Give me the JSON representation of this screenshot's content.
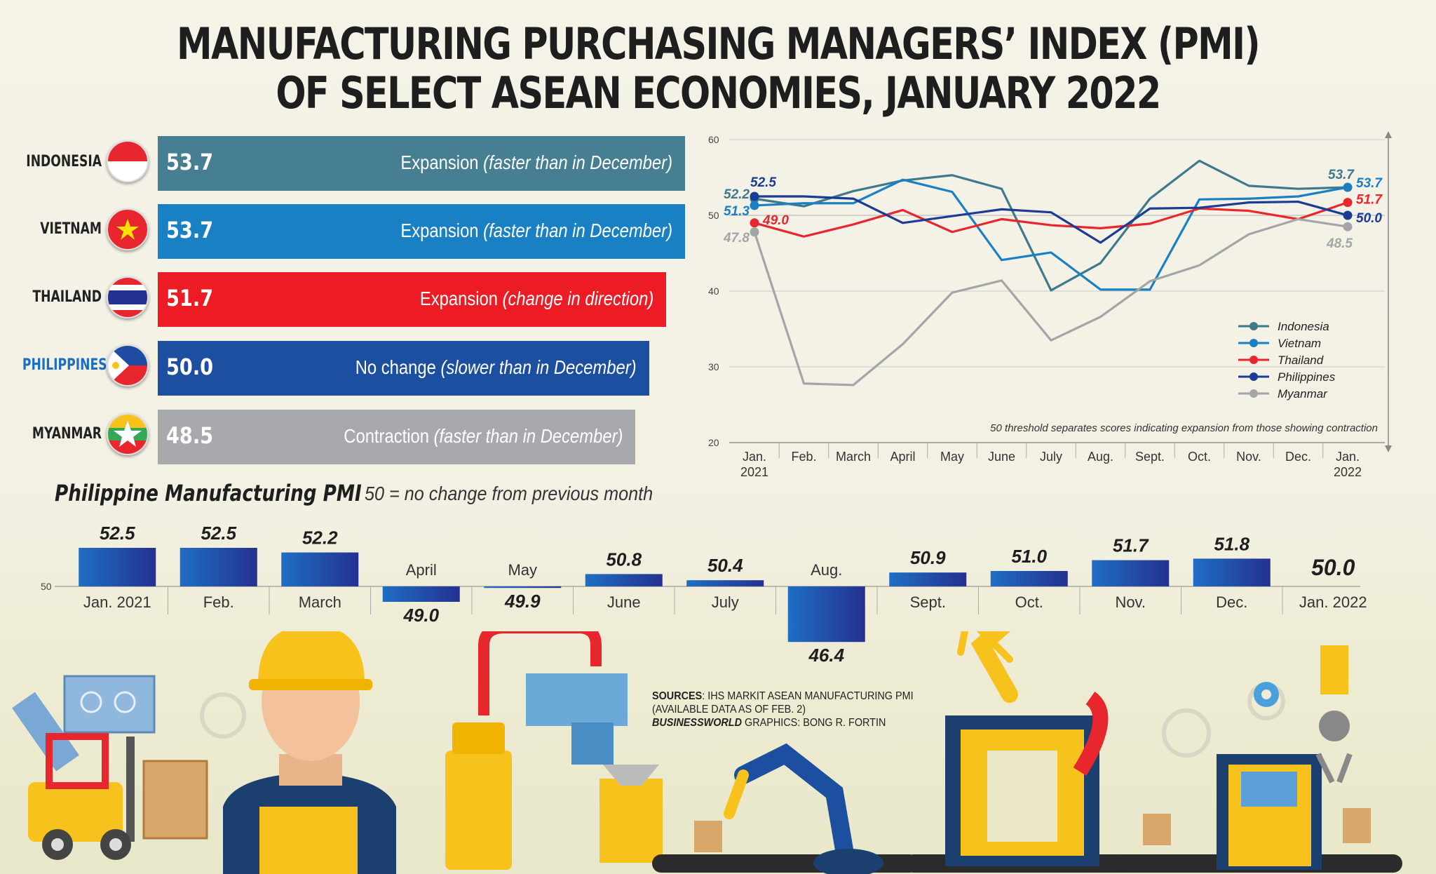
{
  "title": {
    "line1": "MANUFACTURING PURCHASING MANAGERS’ INDEX (PMI)",
    "line2": "OF SELECT ASEAN ECONOMIES, JANUARY 2022"
  },
  "countries": [
    {
      "name": "INDONESIA",
      "value": "53.7",
      "status": "Expansion",
      "note": "(faster than in December)",
      "color": "#467f91",
      "label_color": "#222222"
    },
    {
      "name": "VIETNAM",
      "value": "53.7",
      "status": "Expansion",
      "note": "(faster than in December)",
      "color": "#1a80c4",
      "label_color": "#222222"
    },
    {
      "name": "THAILAND",
      "value": "51.7",
      "status": "Expansion",
      "note": "(change in direction)",
      "color": "#ed1c24",
      "label_color": "#222222"
    },
    {
      "name": "PHILIPPINES",
      "value": "50.0",
      "status": "No change",
      "note": "(slower than in December)",
      "color": "#1d4fa0",
      "label_color": "#1a6fc0"
    },
    {
      "name": "MYANMAR",
      "value": "48.5",
      "status": "Contraction",
      "note": "(faster than in December)",
      "color": "#a7a9ac",
      "label_color": "#222222"
    }
  ],
  "chart_data": [
    {
      "type": "bar",
      "orientation": "horizontal",
      "title": "Manufacturing PMI, January 2022",
      "categories": [
        "Indonesia",
        "Vietnam",
        "Thailand",
        "Philippines",
        "Myanmar"
      ],
      "values": [
        53.7,
        53.7,
        51.7,
        50.0,
        48.5
      ]
    },
    {
      "type": "line",
      "categories": [
        "Jan. 2021",
        "Feb.",
        "March",
        "April",
        "May",
        "June",
        "July",
        "Aug.",
        "Sept.",
        "Oct.",
        "Nov.",
        "Dec.",
        "Jan. 2022"
      ],
      "x_labels": [
        [
          "Jan.",
          "2021"
        ],
        [
          "Feb."
        ],
        [
          "March"
        ],
        [
          "April"
        ],
        [
          "May"
        ],
        [
          "June"
        ],
        [
          "July"
        ],
        [
          "Aug."
        ],
        [
          "Sept."
        ],
        [
          "Oct."
        ],
        [
          "Nov."
        ],
        [
          "Dec."
        ],
        [
          "Jan.",
          "2022"
        ]
      ],
      "ylim": [
        20,
        60
      ],
      "yticks": [
        20,
        30,
        40,
        50,
        60
      ],
      "series": [
        {
          "name": "Indonesia",
          "color": "#3d7a8c",
          "values": [
            52.2,
            51.2,
            53.2,
            54.6,
            55.3,
            53.5,
            40.1,
            43.7,
            52.2,
            57.2,
            53.9,
            53.5,
            53.7
          ],
          "start_label": "52.2",
          "end_label": "53.7"
        },
        {
          "name": "Vietnam",
          "color": "#1a80c4",
          "values": [
            51.3,
            51.6,
            51.6,
            54.7,
            53.1,
            44.1,
            45.1,
            40.2,
            40.2,
            52.1,
            52.2,
            52.5,
            53.7
          ],
          "start_label": "51.3",
          "end_label": "53.7"
        },
        {
          "name": "Thailand",
          "color": "#e8262d",
          "values": [
            49.0,
            47.2,
            48.8,
            50.7,
            47.8,
            49.5,
            48.7,
            48.3,
            48.9,
            50.9,
            50.6,
            49.5,
            51.7
          ],
          "start_label": "49.0",
          "end_label": "51.7"
        },
        {
          "name": "Philippines",
          "color": "#1a3c94",
          "values": [
            52.5,
            52.5,
            52.2,
            49.0,
            49.9,
            50.8,
            50.4,
            46.4,
            50.9,
            51.0,
            51.7,
            51.8,
            50.0
          ],
          "start_label": "52.5",
          "end_label": "50.0"
        },
        {
          "name": "Myanmar",
          "color": "#a3a5a8",
          "values": [
            47.8,
            27.8,
            27.6,
            33.0,
            39.8,
            41.4,
            33.5,
            36.6,
            41.3,
            43.4,
            47.5,
            49.5,
            48.5
          ],
          "start_label": "47.8",
          "end_label": "48.5"
        }
      ],
      "annotation": "50 threshold separates scores indicating expansion from those showing contraction"
    },
    {
      "type": "bar",
      "title": "Philippine Manufacturing PMI",
      "subtitle": "50 = no change from previous month",
      "baseline": 50,
      "baseline_label": "50",
      "categories": [
        "Jan. 2021",
        "Feb.",
        "March",
        "April",
        "May",
        "June",
        "July",
        "Aug.",
        "Sept.",
        "Oct.",
        "Nov.",
        "Dec.",
        "Jan. 2022"
      ],
      "values": [
        52.5,
        52.5,
        52.2,
        49.0,
        49.9,
        50.8,
        50.4,
        46.4,
        50.9,
        51.0,
        51.7,
        51.8,
        50.0
      ],
      "value_labels": [
        "52.5",
        "52.5",
        "52.2",
        "49.0",
        "49.9",
        "50.8",
        "50.4",
        "46.4",
        "50.9",
        "51.0",
        "51.7",
        "51.8",
        "50.0"
      ]
    }
  ],
  "sources": {
    "label": "SOURCES",
    "text": ": IHS MARKIT ASEAN MANUFACTURING PMI",
    "line2": "(AVAILABLE DATA AS OF FEB. 2)",
    "credit_bold": "BUSINESSWORLD",
    "credit_text": " GRAPHICS: BONG R. FORTIN"
  },
  "palette": {
    "bar_blue_light": "#1f6ec4",
    "bar_blue_dark": "#24318f",
    "grid": "#c9c9c9",
    "yellow": "#f6c21b"
  }
}
